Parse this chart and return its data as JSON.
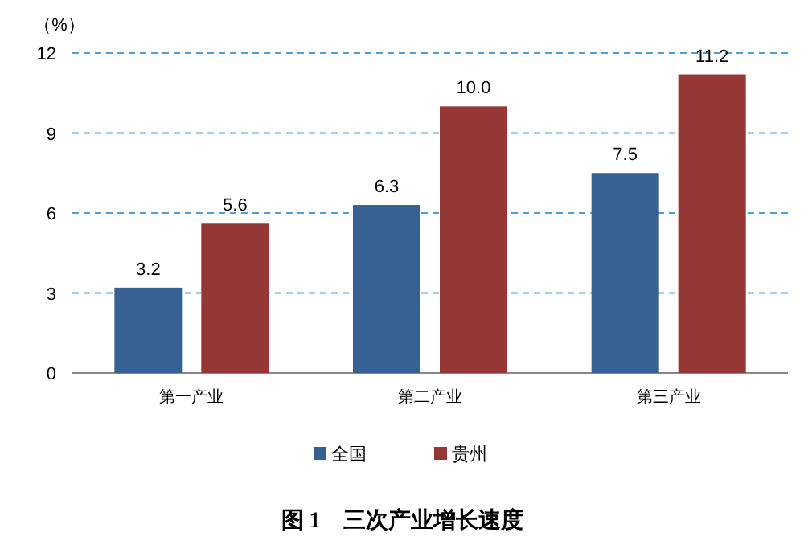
{
  "chart_data": {
    "type": "bar",
    "title": "图 1　三次产业增长速度",
    "ylabel": "（%）",
    "categories": [
      "第一产业",
      "第二产业",
      "第三产业"
    ],
    "series": [
      {
        "name": "全国",
        "color": "#376092",
        "values": [
          3.2,
          6.3,
          7.5
        ],
        "value_labels": [
          "3.2",
          "6.3",
          "7.5"
        ]
      },
      {
        "name": "贵州",
        "color": "#953735",
        "values": [
          5.6,
          10.0,
          11.2
        ],
        "value_labels": [
          "5.6",
          "10.0",
          "11.2"
        ]
      }
    ],
    "ylim": [
      0,
      12
    ],
    "yticks": [
      0,
      3,
      6,
      9,
      12
    ],
    "grid": "y",
    "legend": "bottom"
  }
}
